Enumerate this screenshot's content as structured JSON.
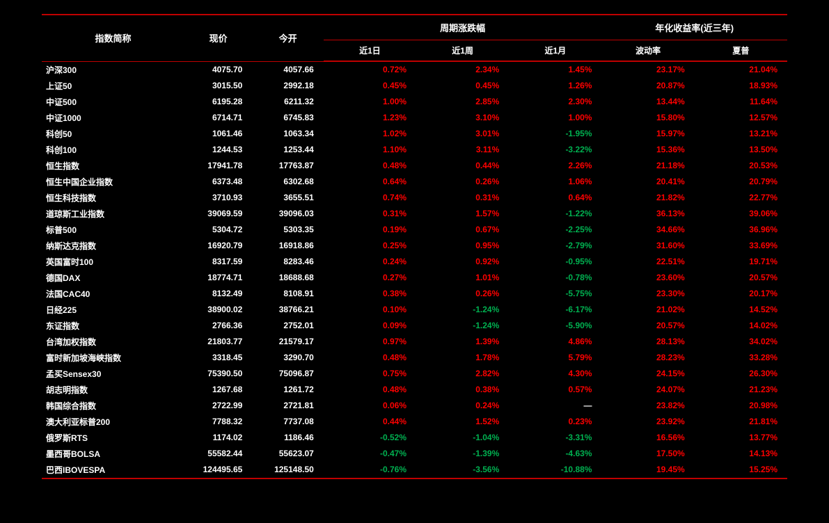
{
  "text_colors": {
    "white": "#ffffff",
    "up": "#ff0000",
    "down": "#00b050"
  },
  "border_color": "#c00000",
  "background_color": "#000000",
  "header_group": {
    "col0": "指数简称",
    "col1": "现价",
    "col2": "今开",
    "returns_span": "周期涨跌幅",
    "annual_span": "年化收益率(近三年)"
  },
  "header_sub": {
    "c3": "近1日",
    "c4": "近1周",
    "c5": "近1月",
    "c6": "波动率",
    "c7": "夏普"
  },
  "rows": [
    {
      "name": "沪深300",
      "price": "4075.70",
      "open": "4057.66",
      "d1": {
        "v": "0.72%",
        "c": "up"
      },
      "d7": {
        "v": "2.34%",
        "c": "up"
      },
      "d30": {
        "v": "1.45%",
        "c": "up"
      },
      "vol": {
        "v": "23.17%",
        "c": "up"
      },
      "sharpe": {
        "v": "21.04%",
        "c": "up"
      }
    },
    {
      "name": "上证50",
      "price": "3015.50",
      "open": "2992.18",
      "d1": {
        "v": "0.45%",
        "c": "up"
      },
      "d7": {
        "v": "0.45%",
        "c": "up"
      },
      "d30": {
        "v": "1.26%",
        "c": "up"
      },
      "vol": {
        "v": "20.87%",
        "c": "up"
      },
      "sharpe": {
        "v": "18.93%",
        "c": "up"
      }
    },
    {
      "name": "中证500",
      "price": "6195.28",
      "open": "6211.32",
      "d1": {
        "v": "1.00%",
        "c": "up"
      },
      "d7": {
        "v": "2.85%",
        "c": "up"
      },
      "d30": {
        "v": "2.30%",
        "c": "up"
      },
      "vol": {
        "v": "13.44%",
        "c": "up"
      },
      "sharpe": {
        "v": "11.64%",
        "c": "up"
      }
    },
    {
      "name": "中证1000",
      "price": "6714.71",
      "open": "6745.83",
      "d1": {
        "v": "1.23%",
        "c": "up"
      },
      "d7": {
        "v": "3.10%",
        "c": "up"
      },
      "d30": {
        "v": "1.00%",
        "c": "up"
      },
      "vol": {
        "v": "15.80%",
        "c": "up"
      },
      "sharpe": {
        "v": "12.57%",
        "c": "up"
      }
    },
    {
      "name": "科创50",
      "price": "1061.46",
      "open": "1063.34",
      "d1": {
        "v": "1.02%",
        "c": "up"
      },
      "d7": {
        "v": "3.01%",
        "c": "up"
      },
      "d30": {
        "v": "-1.95%",
        "c": "down"
      },
      "vol": {
        "v": "15.97%",
        "c": "up"
      },
      "sharpe": {
        "v": "13.21%",
        "c": "up"
      }
    },
    {
      "name": "科创100",
      "price": "1244.53",
      "open": "1253.44",
      "d1": {
        "v": "1.10%",
        "c": "up"
      },
      "d7": {
        "v": "3.11%",
        "c": "up"
      },
      "d30": {
        "v": "-3.22%",
        "c": "down"
      },
      "vol": {
        "v": "15.36%",
        "c": "up"
      },
      "sharpe": {
        "v": "13.50%",
        "c": "up"
      }
    },
    {
      "name": "恒生指数",
      "price": "17941.78",
      "open": "17763.87",
      "d1": {
        "v": "0.48%",
        "c": "up"
      },
      "d7": {
        "v": "0.44%",
        "c": "up"
      },
      "d30": {
        "v": "2.26%",
        "c": "up"
      },
      "vol": {
        "v": "21.18%",
        "c": "up"
      },
      "sharpe": {
        "v": "20.53%",
        "c": "up"
      }
    },
    {
      "name": "恒生中国企业指数",
      "price": "6373.48",
      "open": "6302.68",
      "d1": {
        "v": "0.64%",
        "c": "up"
      },
      "d7": {
        "v": "0.26%",
        "c": "up"
      },
      "d30": {
        "v": "1.06%",
        "c": "up"
      },
      "vol": {
        "v": "20.41%",
        "c": "up"
      },
      "sharpe": {
        "v": "20.79%",
        "c": "up"
      }
    },
    {
      "name": "恒生科技指数",
      "price": "3710.93",
      "open": "3655.51",
      "d1": {
        "v": "0.74%",
        "c": "up"
      },
      "d7": {
        "v": "0.31%",
        "c": "up"
      },
      "d30": {
        "v": "0.64%",
        "c": "up"
      },
      "vol": {
        "v": "21.82%",
        "c": "up"
      },
      "sharpe": {
        "v": "22.77%",
        "c": "up"
      }
    },
    {
      "name": "道琼斯工业指数",
      "price": "39069.59",
      "open": "39096.03",
      "d1": {
        "v": "0.31%",
        "c": "up"
      },
      "d7": {
        "v": "1.57%",
        "c": "up"
      },
      "d30": {
        "v": "-1.22%",
        "c": "down"
      },
      "vol": {
        "v": "36.13%",
        "c": "up"
      },
      "sharpe": {
        "v": "39.06%",
        "c": "up"
      }
    },
    {
      "name": "标普500",
      "price": "5304.72",
      "open": "5303.35",
      "d1": {
        "v": "0.19%",
        "c": "up"
      },
      "d7": {
        "v": "0.67%",
        "c": "up"
      },
      "d30": {
        "v": "-2.25%",
        "c": "down"
      },
      "vol": {
        "v": "34.66%",
        "c": "up"
      },
      "sharpe": {
        "v": "36.96%",
        "c": "up"
      }
    },
    {
      "name": "纳斯达克指数",
      "price": "16920.79",
      "open": "16918.86",
      "d1": {
        "v": "0.25%",
        "c": "up"
      },
      "d7": {
        "v": "0.95%",
        "c": "up"
      },
      "d30": {
        "v": "-2.79%",
        "c": "down"
      },
      "vol": {
        "v": "31.60%",
        "c": "up"
      },
      "sharpe": {
        "v": "33.69%",
        "c": "up"
      }
    },
    {
      "name": "英国富时100",
      "price": "8317.59",
      "open": "8283.46",
      "d1": {
        "v": "0.24%",
        "c": "up"
      },
      "d7": {
        "v": "0.92%",
        "c": "up"
      },
      "d30": {
        "v": "-0.95%",
        "c": "down"
      },
      "vol": {
        "v": "22.51%",
        "c": "up"
      },
      "sharpe": {
        "v": "19.71%",
        "c": "up"
      }
    },
    {
      "name": "德国DAX",
      "price": "18774.71",
      "open": "18688.68",
      "d1": {
        "v": "0.27%",
        "c": "up"
      },
      "d7": {
        "v": "1.01%",
        "c": "up"
      },
      "d30": {
        "v": "-0.78%",
        "c": "down"
      },
      "vol": {
        "v": "23.60%",
        "c": "up"
      },
      "sharpe": {
        "v": "20.57%",
        "c": "up"
      }
    },
    {
      "name": "法国CAC40",
      "price": "8132.49",
      "open": "8108.91",
      "d1": {
        "v": "0.38%",
        "c": "up"
      },
      "d7": {
        "v": "0.26%",
        "c": "up"
      },
      "d30": {
        "v": "-5.75%",
        "c": "down"
      },
      "vol": {
        "v": "23.30%",
        "c": "up"
      },
      "sharpe": {
        "v": "20.17%",
        "c": "up"
      }
    },
    {
      "name": "日经225",
      "price": "38900.02",
      "open": "38766.21",
      "d1": {
        "v": "0.10%",
        "c": "up"
      },
      "d7": {
        "v": "-1.24%",
        "c": "down"
      },
      "d30": {
        "v": "-6.17%",
        "c": "down"
      },
      "vol": {
        "v": "21.02%",
        "c": "up"
      },
      "sharpe": {
        "v": "14.52%",
        "c": "up"
      }
    },
    {
      "name": "东证指数",
      "price": "2766.36",
      "open": "2752.01",
      "d1": {
        "v": "0.09%",
        "c": "up"
      },
      "d7": {
        "v": "-1.24%",
        "c": "down"
      },
      "d30": {
        "v": "-5.90%",
        "c": "down"
      },
      "vol": {
        "v": "20.57%",
        "c": "up"
      },
      "sharpe": {
        "v": "14.02%",
        "c": "up"
      }
    },
    {
      "name": "台湾加权指数",
      "price": "21803.77",
      "open": "21579.17",
      "d1": {
        "v": "0.97%",
        "c": "up"
      },
      "d7": {
        "v": "1.39%",
        "c": "up"
      },
      "d30": {
        "v": "4.86%",
        "c": "up"
      },
      "vol": {
        "v": "28.13%",
        "c": "up"
      },
      "sharpe": {
        "v": "34.02%",
        "c": "up"
      }
    },
    {
      "name": "富时新加坡海峡指数",
      "price": "3318.45",
      "open": "3290.70",
      "d1": {
        "v": "0.48%",
        "c": "up"
      },
      "d7": {
        "v": "1.78%",
        "c": "up"
      },
      "d30": {
        "v": "5.79%",
        "c": "up"
      },
      "vol": {
        "v": "28.23%",
        "c": "up"
      },
      "sharpe": {
        "v": "33.28%",
        "c": "up"
      }
    },
    {
      "name": "孟买Sensex30",
      "price": "75390.50",
      "open": "75096.87",
      "d1": {
        "v": "0.75%",
        "c": "up"
      },
      "d7": {
        "v": "2.82%",
        "c": "up"
      },
      "d30": {
        "v": "4.30%",
        "c": "up"
      },
      "vol": {
        "v": "24.15%",
        "c": "up"
      },
      "sharpe": {
        "v": "26.30%",
        "c": "up"
      }
    },
    {
      "name": "胡志明指数",
      "price": "1267.68",
      "open": "1261.72",
      "d1": {
        "v": "0.48%",
        "c": "up"
      },
      "d7": {
        "v": "0.38%",
        "c": "up"
      },
      "d30": {
        "v": "0.57%",
        "c": "up"
      },
      "vol": {
        "v": "24.07%",
        "c": "up"
      },
      "sharpe": {
        "v": "21.23%",
        "c": "up"
      }
    },
    {
      "name": "韩国综合指数",
      "price": "2722.99",
      "open": "2721.81",
      "d1": {
        "v": "0.06%",
        "c": "up"
      },
      "d7": {
        "v": "0.24%",
        "c": "up"
      },
      "d30": {
        "v": "—",
        "c": "missing"
      },
      "vol": {
        "v": "23.82%",
        "c": "up"
      },
      "sharpe": {
        "v": "20.98%",
        "c": "up"
      }
    },
    {
      "name": "澳大利亚标普200",
      "price": "7788.32",
      "open": "7737.08",
      "d1": {
        "v": "0.44%",
        "c": "up"
      },
      "d7": {
        "v": "1.52%",
        "c": "up"
      },
      "d30": {
        "v": "0.23%",
        "c": "up"
      },
      "vol": {
        "v": "23.92%",
        "c": "up"
      },
      "sharpe": {
        "v": "21.81%",
        "c": "up"
      }
    },
    {
      "name": "俄罗斯RTS",
      "price": "1174.02",
      "open": "1186.46",
      "d1": {
        "v": "-0.52%",
        "c": "down"
      },
      "d7": {
        "v": "-1.04%",
        "c": "down"
      },
      "d30": {
        "v": "-3.31%",
        "c": "down"
      },
      "vol": {
        "v": "16.56%",
        "c": "up"
      },
      "sharpe": {
        "v": "13.77%",
        "c": "up"
      }
    },
    {
      "name": "墨西哥BOLSA",
      "price": "55582.44",
      "open": "55623.07",
      "d1": {
        "v": "-0.47%",
        "c": "down"
      },
      "d7": {
        "v": "-1.39%",
        "c": "down"
      },
      "d30": {
        "v": "-4.63%",
        "c": "down"
      },
      "vol": {
        "v": "17.50%",
        "c": "up"
      },
      "sharpe": {
        "v": "14.13%",
        "c": "up"
      }
    },
    {
      "name": "巴西IBOVESPA",
      "price": "124495.65",
      "open": "125148.50",
      "d1": {
        "v": "-0.76%",
        "c": "down"
      },
      "d7": {
        "v": "-3.56%",
        "c": "down"
      },
      "d30": {
        "v": "-10.88%",
        "c": "down"
      },
      "vol": {
        "v": "19.45%",
        "c": "up"
      },
      "sharpe": {
        "v": "15.25%",
        "c": "up"
      }
    }
  ]
}
